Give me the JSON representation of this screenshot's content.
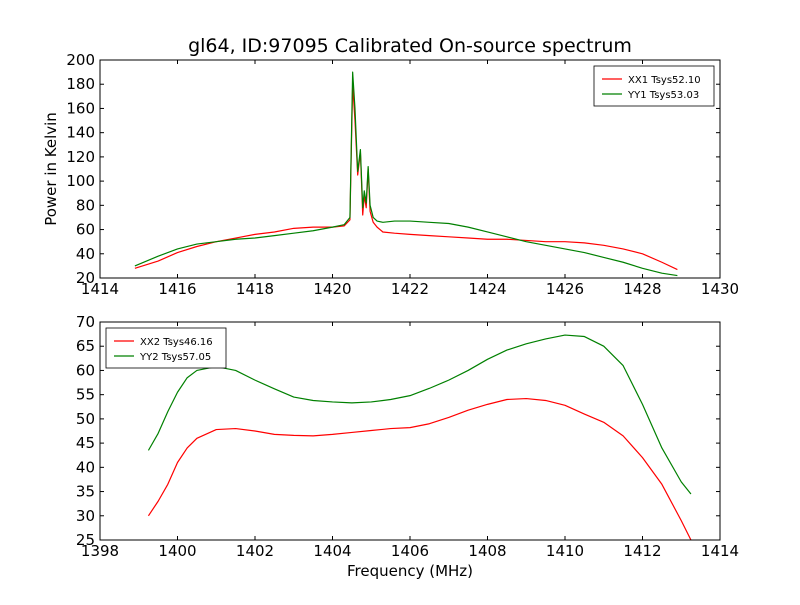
{
  "chart_data": [
    {
      "type": "line",
      "title": "gl64, ID:97095 Calibrated On-source spectrum",
      "xlabel": "",
      "ylabel": "Power in Kelvin",
      "xlim": [
        1414,
        1430
      ],
      "ylim": [
        20,
        200
      ],
      "xticks": [
        1414,
        1416,
        1418,
        1420,
        1422,
        1424,
        1426,
        1428,
        1430
      ],
      "yticks": [
        20,
        40,
        60,
        80,
        100,
        120,
        140,
        160,
        180,
        200
      ],
      "grid": false,
      "legend": "top-right",
      "series": [
        {
          "name": "XX1 Tsys52.10",
          "color": "#ff0000",
          "x": [
            1414.9,
            1415.5,
            1416.0,
            1416.5,
            1417.0,
            1417.5,
            1418.0,
            1418.5,
            1419.0,
            1419.5,
            1420.0,
            1420.3,
            1420.45,
            1420.52,
            1420.58,
            1420.65,
            1420.72,
            1420.78,
            1420.82,
            1420.87,
            1420.92,
            1420.97,
            1421.05,
            1421.15,
            1421.3,
            1421.6,
            1422.0,
            1422.5,
            1423.0,
            1423.5,
            1424.0,
            1424.5,
            1425.0,
            1425.5,
            1426.0,
            1426.5,
            1427.0,
            1427.5,
            1428.0,
            1428.5,
            1428.9
          ],
          "y": [
            28,
            34,
            41,
            46,
            50,
            53,
            56,
            58,
            61,
            62,
            62,
            63,
            68,
            180,
            150,
            105,
            124,
            72,
            88,
            78,
            110,
            75,
            66,
            62,
            58,
            57,
            56,
            55,
            54,
            53,
            52,
            52,
            51,
            50,
            50,
            49,
            47,
            44,
            40,
            33,
            27
          ]
        },
        {
          "name": "YY1 Tsys53.03",
          "color": "#008000",
          "x": [
            1414.9,
            1415.5,
            1416.0,
            1416.5,
            1417.0,
            1417.5,
            1418.0,
            1418.5,
            1419.0,
            1419.5,
            1420.0,
            1420.3,
            1420.45,
            1420.52,
            1420.58,
            1420.65,
            1420.72,
            1420.78,
            1420.82,
            1420.87,
            1420.92,
            1420.97,
            1421.05,
            1421.15,
            1421.3,
            1421.6,
            1422.0,
            1422.5,
            1423.0,
            1423.5,
            1424.0,
            1424.5,
            1425.0,
            1425.5,
            1426.0,
            1426.5,
            1427.0,
            1427.5,
            1428.0,
            1428.5,
            1428.9
          ],
          "y": [
            30,
            38,
            44,
            48,
            50,
            52,
            53,
            55,
            57,
            59,
            62,
            64,
            70,
            190,
            160,
            108,
            126,
            78,
            92,
            82,
            112,
            80,
            70,
            67,
            66,
            67,
            67,
            66,
            65,
            62,
            58,
            54,
            50,
            47,
            44,
            41,
            37,
            33,
            28,
            24,
            22
          ]
        }
      ]
    },
    {
      "type": "line",
      "title": "",
      "xlabel": "Frequency (MHz)",
      "ylabel": "",
      "xlim": [
        1398,
        1414
      ],
      "ylim": [
        25,
        70
      ],
      "xticks": [
        1398,
        1400,
        1402,
        1404,
        1406,
        1408,
        1410,
        1412,
        1414
      ],
      "yticks": [
        25,
        30,
        35,
        40,
        45,
        50,
        55,
        60,
        65,
        70
      ],
      "grid": false,
      "legend": "top-left",
      "series": [
        {
          "name": "XX2 Tsys46.16",
          "color": "#ff0000",
          "x": [
            1399.25,
            1399.5,
            1399.75,
            1400.0,
            1400.25,
            1400.5,
            1401.0,
            1401.5,
            1402.0,
            1402.5,
            1403.0,
            1403.5,
            1404.0,
            1404.5,
            1405.0,
            1405.5,
            1406.0,
            1406.5,
            1407.0,
            1407.5,
            1408.0,
            1408.5,
            1409.0,
            1409.5,
            1410.0,
            1410.5,
            1411.0,
            1411.5,
            1412.0,
            1412.5,
            1413.0,
            1413.25
          ],
          "y": [
            30,
            33,
            36.5,
            41,
            44,
            46,
            47.8,
            48,
            47.5,
            46.8,
            46.6,
            46.5,
            46.8,
            47.2,
            47.6,
            48,
            48.2,
            49,
            50.3,
            51.8,
            53,
            54,
            54.2,
            53.8,
            52.8,
            51,
            49.3,
            46.5,
            42,
            36.5,
            29,
            25
          ]
        },
        {
          "name": "YY2 Tsys57.05",
          "color": "#008000",
          "x": [
            1399.25,
            1399.5,
            1399.75,
            1400.0,
            1400.25,
            1400.5,
            1401.0,
            1401.5,
            1402.0,
            1402.5,
            1403.0,
            1403.5,
            1404.0,
            1404.5,
            1405.0,
            1405.5,
            1406.0,
            1406.5,
            1407.0,
            1407.5,
            1408.0,
            1408.5,
            1409.0,
            1409.5,
            1410.0,
            1410.5,
            1411.0,
            1411.5,
            1412.0,
            1412.5,
            1413.0,
            1413.25
          ],
          "y": [
            43.5,
            47,
            51.5,
            55.5,
            58.5,
            60,
            60.8,
            60,
            58,
            56.2,
            54.5,
            53.8,
            53.5,
            53.3,
            53.5,
            54,
            54.8,
            56.3,
            58,
            60,
            62.3,
            64.2,
            65.5,
            66.5,
            67.3,
            67,
            65,
            61,
            53,
            44,
            37,
            34.5
          ]
        }
      ]
    }
  ]
}
